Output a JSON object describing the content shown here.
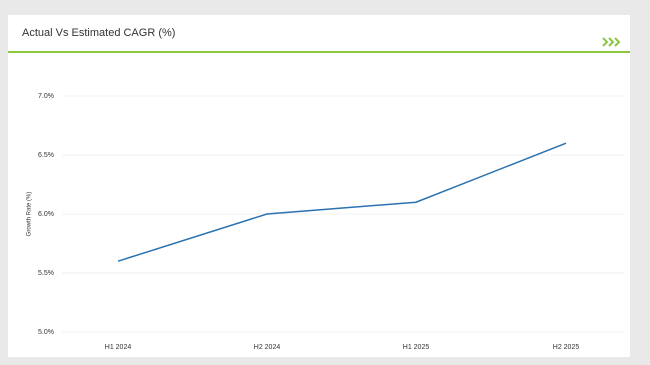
{
  "chart_data": {
    "type": "line",
    "title": "Actual Vs Estimated CAGR (%)",
    "y_label": "Growth Rate (%)",
    "categories": [
      "H1 2024",
      "H2 2024",
      "H1 2025",
      "H2 2025"
    ],
    "series": [
      {
        "name": "Growth Rate",
        "color": "#2a72b0",
        "values": [
          5.6,
          6.0,
          6.1,
          6.6
        ]
      }
    ],
    "ylim": [
      5.0,
      7.0
    ],
    "yticks": [
      {
        "value": 5.0,
        "label": "5.0%"
      },
      {
        "value": 5.5,
        "label": "5.5%"
      },
      {
        "value": 6.0,
        "label": "6.0%"
      },
      {
        "value": 6.5,
        "label": "6.5%"
      },
      {
        "value": 7.0,
        "label": "7.0%"
      }
    ],
    "grid": true
  }
}
